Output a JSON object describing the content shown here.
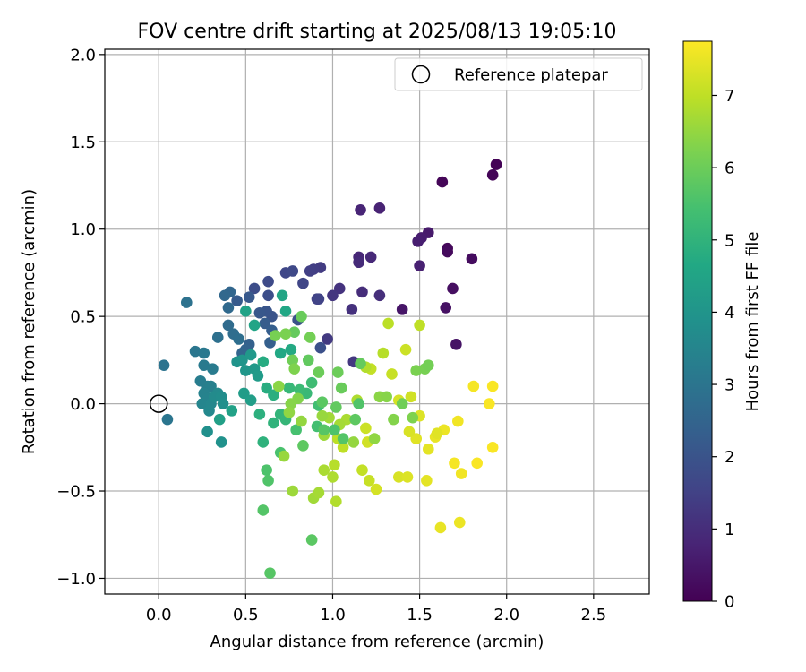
{
  "chart_data": {
    "type": "scatter",
    "title": "FOV centre drift starting at 2025/08/13 19:05:10",
    "xlabel": "Angular distance from reference (arcmin)",
    "ylabel": "Rotation from reference (arcmin)",
    "xlim": [
      -0.31,
      2.82
    ],
    "ylim": [
      -1.09,
      2.03
    ],
    "xticks": [
      0.0,
      0.5,
      1.0,
      1.5,
      2.0,
      2.5
    ],
    "xtick_labels": [
      "0.0",
      "0.5",
      "1.0",
      "1.5",
      "2.0",
      "2.5"
    ],
    "yticks": [
      -1.0,
      -0.5,
      0.0,
      0.5,
      1.0,
      1.5,
      2.0
    ],
    "ytick_labels": [
      "−1.0",
      "−0.5",
      "0.0",
      "0.5",
      "1.0",
      "1.5",
      "2.0"
    ],
    "grid": true,
    "legend": {
      "placement": "top-right",
      "entries": [
        {
          "label": "Reference platepar",
          "marker": "open-circle"
        }
      ]
    },
    "reference_point": {
      "x": 0.0,
      "y": 0.0
    },
    "colorbar": {
      "label": "Hours from first FF file",
      "min": 0,
      "max": 7.75,
      "ticks": [
        0,
        1,
        2,
        3,
        4,
        5,
        6,
        7
      ],
      "colormap": "viridis"
    },
    "points": [
      [
        1.94,
        1.37,
        0.05
      ],
      [
        1.92,
        1.31,
        0.08
      ],
      [
        1.63,
        1.27,
        0.1
      ],
      [
        1.66,
        0.89,
        0.15
      ],
      [
        1.66,
        0.87,
        0.2
      ],
      [
        1.8,
        0.83,
        0.25
      ],
      [
        1.69,
        0.66,
        0.3
      ],
      [
        1.65,
        0.55,
        0.35
      ],
      [
        1.71,
        0.34,
        0.4
      ],
      [
        1.4,
        0.54,
        0.45
      ],
      [
        1.55,
        0.98,
        0.55
      ],
      [
        1.51,
        0.95,
        0.6
      ],
      [
        1.49,
        0.93,
        0.65
      ],
      [
        1.5,
        0.79,
        0.7
      ],
      [
        1.27,
        1.12,
        0.75
      ],
      [
        1.16,
        1.11,
        0.8
      ],
      [
        1.15,
        0.84,
        0.85
      ],
      [
        1.22,
        0.84,
        0.9
      ],
      [
        1.15,
        0.81,
        0.95
      ],
      [
        1.17,
        0.64,
        1.0
      ],
      [
        1.27,
        0.62,
        1.05
      ],
      [
        1.11,
        0.54,
        1.1
      ],
      [
        1.04,
        0.66,
        1.15
      ],
      [
        1.0,
        0.62,
        1.2
      ],
      [
        1.12,
        0.24,
        1.25
      ],
      [
        0.97,
        0.37,
        1.3
      ],
      [
        0.93,
        0.78,
        1.35
      ],
      [
        0.89,
        0.77,
        1.4
      ],
      [
        0.87,
        0.76,
        1.45
      ],
      [
        0.91,
        0.6,
        1.5
      ],
      [
        0.92,
        0.6,
        1.55
      ],
      [
        0.83,
        0.69,
        1.6
      ],
      [
        0.73,
        0.75,
        1.65
      ],
      [
        0.77,
        0.76,
        1.7
      ],
      [
        0.63,
        0.7,
        1.75
      ],
      [
        0.55,
        0.66,
        1.8
      ],
      [
        0.63,
        0.62,
        1.85
      ],
      [
        0.93,
        0.32,
        1.9
      ],
      [
        0.8,
        0.48,
        1.95
      ],
      [
        0.65,
        0.5,
        2.0
      ],
      [
        0.62,
        0.53,
        2.05
      ],
      [
        0.58,
        0.52,
        2.1
      ],
      [
        0.52,
        0.61,
        2.15
      ],
      [
        0.45,
        0.59,
        2.2
      ],
      [
        0.61,
        0.46,
        2.25
      ],
      [
        0.65,
        0.42,
        2.3
      ],
      [
        0.64,
        0.35,
        2.35
      ],
      [
        0.52,
        0.34,
        2.4
      ],
      [
        0.5,
        0.31,
        2.45
      ],
      [
        0.48,
        0.29,
        2.5
      ],
      [
        0.41,
        0.64,
        2.55
      ],
      [
        0.38,
        0.62,
        2.6
      ],
      [
        0.4,
        0.55,
        2.65
      ],
      [
        0.4,
        0.45,
        2.7
      ],
      [
        0.43,
        0.4,
        2.75
      ],
      [
        0.46,
        0.37,
        2.8
      ],
      [
        0.34,
        0.38,
        2.85
      ],
      [
        0.16,
        0.58,
        2.9
      ],
      [
        0.03,
        0.22,
        2.95
      ],
      [
        0.05,
        -0.09,
        3.0
      ],
      [
        0.21,
        0.3,
        3.05
      ],
      [
        0.26,
        0.29,
        3.1
      ],
      [
        0.26,
        0.22,
        3.15
      ],
      [
        0.31,
        0.2,
        3.2
      ],
      [
        0.24,
        0.13,
        3.25
      ],
      [
        0.28,
        0.1,
        3.3
      ],
      [
        0.3,
        0.1,
        3.35
      ],
      [
        0.26,
        0.06,
        3.4
      ],
      [
        0.28,
        0.03,
        3.45
      ],
      [
        0.25,
        0.0,
        3.5
      ],
      [
        0.3,
        0.0,
        3.55
      ],
      [
        0.29,
        -0.04,
        3.6
      ],
      [
        0.34,
        0.06,
        3.65
      ],
      [
        0.32,
        0.04,
        3.7
      ],
      [
        0.36,
        0.04,
        3.75
      ],
      [
        0.37,
        0.0,
        3.8
      ],
      [
        0.28,
        -0.16,
        3.85
      ],
      [
        0.36,
        -0.22,
        3.9
      ],
      [
        0.45,
        0.24,
        3.95
      ],
      [
        0.48,
        0.25,
        4.0
      ],
      [
        0.5,
        0.19,
        4.05
      ],
      [
        0.53,
        0.28,
        4.1
      ],
      [
        0.55,
        0.2,
        4.15
      ],
      [
        0.57,
        0.16,
        4.2
      ],
      [
        0.49,
        0.06,
        4.25
      ],
      [
        0.53,
        0.02,
        4.3
      ],
      [
        0.35,
        -0.09,
        4.35
      ],
      [
        0.42,
        -0.04,
        4.4
      ],
      [
        0.5,
        0.53,
        4.45
      ],
      [
        0.55,
        0.45,
        4.5
      ],
      [
        0.71,
        0.62,
        4.55
      ],
      [
        0.73,
        0.53,
        4.6
      ],
      [
        0.7,
        0.29,
        4.65
      ],
      [
        0.76,
        0.31,
        4.7
      ],
      [
        0.6,
        0.24,
        4.75
      ],
      [
        0.62,
        0.09,
        4.8
      ],
      [
        0.66,
        0.05,
        4.85
      ],
      [
        0.58,
        -0.06,
        4.9
      ],
      [
        0.6,
        -0.22,
        4.95
      ],
      [
        0.66,
        -0.11,
        5.0
      ],
      [
        0.7,
        -0.06,
        5.05
      ],
      [
        0.73,
        -0.09,
        5.1
      ],
      [
        0.75,
        0.09,
        5.15
      ],
      [
        0.85,
        0.06,
        5.2
      ],
      [
        0.81,
        0.08,
        5.25
      ],
      [
        0.88,
        0.12,
        5.3
      ],
      [
        0.92,
        -0.01,
        5.35
      ],
      [
        0.91,
        -0.13,
        5.4
      ],
      [
        0.79,
        -0.15,
        5.45
      ],
      [
        0.7,
        -0.28,
        5.5
      ],
      [
        0.62,
        -0.38,
        5.55
      ],
      [
        0.63,
        -0.44,
        5.6
      ],
      [
        0.6,
        -0.61,
        5.65
      ],
      [
        0.64,
        -0.97,
        5.7
      ],
      [
        0.88,
        -0.78,
        5.75
      ],
      [
        0.83,
        -0.24,
        5.8
      ],
      [
        0.86,
        0.25,
        5.85
      ],
      [
        0.78,
        0.41,
        5.9
      ],
      [
        0.82,
        0.5,
        5.95
      ],
      [
        0.92,
        0.18,
        6.0
      ],
      [
        0.77,
        0.25,
        6.05
      ],
      [
        0.87,
        0.38,
        6.1
      ],
      [
        0.67,
        0.39,
        6.15
      ],
      [
        0.73,
        0.4,
        6.2
      ],
      [
        0.78,
        0.2,
        6.25
      ],
      [
        0.8,
        0.03,
        6.3
      ],
      [
        0.76,
        0.0,
        6.35
      ],
      [
        0.69,
        0.1,
        6.4
      ],
      [
        0.75,
        -0.05,
        6.45
      ],
      [
        0.82,
        -0.1,
        6.5
      ],
      [
        0.72,
        -0.3,
        6.55
      ],
      [
        0.77,
        -0.5,
        6.6
      ],
      [
        0.89,
        -0.54,
        6.65
      ],
      [
        0.92,
        -0.51,
        6.7
      ],
      [
        0.95,
        -0.38,
        6.75
      ],
      [
        1.0,
        -0.42,
        6.8
      ],
      [
        1.02,
        -0.56,
        6.85
      ],
      [
        1.01,
        -0.35,
        6.9
      ],
      [
        1.03,
        -0.2,
        6.95
      ],
      [
        1.06,
        -0.25,
        7.0
      ],
      [
        1.17,
        -0.38,
        7.05
      ],
      [
        1.21,
        -0.44,
        7.1
      ],
      [
        1.19,
        -0.14,
        7.15
      ],
      [
        1.2,
        -0.22,
        7.2
      ],
      [
        1.25,
        -0.49,
        7.25
      ],
      [
        1.38,
        -0.42,
        7.3
      ],
      [
        1.43,
        -0.42,
        7.35
      ],
      [
        1.48,
        -0.2,
        7.4
      ],
      [
        1.54,
        -0.44,
        7.45
      ],
      [
        1.62,
        -0.71,
        7.5
      ],
      [
        1.73,
        -0.68,
        7.55
      ],
      [
        1.74,
        -0.4,
        7.6
      ],
      [
        1.7,
        -0.34,
        7.65
      ],
      [
        1.83,
        -0.34,
        7.7
      ],
      [
        1.92,
        -0.25,
        7.7
      ],
      [
        1.9,
        0.0,
        7.7
      ],
      [
        1.92,
        0.1,
        7.7
      ],
      [
        1.81,
        0.1,
        7.65
      ],
      [
        1.72,
        -0.1,
        7.6
      ],
      [
        1.64,
        -0.15,
        7.55
      ],
      [
        1.59,
        -0.19,
        7.5
      ],
      [
        1.55,
        -0.26,
        7.45
      ],
      [
        1.6,
        -0.17,
        7.4
      ],
      [
        1.5,
        -0.07,
        7.35
      ],
      [
        1.44,
        -0.16,
        7.3
      ],
      [
        1.38,
        0.02,
        7.25
      ],
      [
        1.45,
        0.04,
        7.2
      ],
      [
        1.42,
        0.31,
        7.15
      ],
      [
        1.34,
        0.17,
        7.1
      ],
      [
        1.22,
        0.2,
        7.05
      ],
      [
        1.5,
        0.45,
        7.0
      ],
      [
        1.32,
        0.46,
        6.95
      ],
      [
        1.29,
        0.29,
        6.9
      ],
      [
        1.19,
        0.21,
        6.85
      ],
      [
        1.14,
        0.02,
        6.8
      ],
      [
        1.08,
        -0.09,
        6.75
      ],
      [
        1.04,
        -0.12,
        6.7
      ],
      [
        0.98,
        -0.08,
        6.65
      ],
      [
        0.95,
        -0.18,
        6.6
      ],
      [
        0.94,
        -0.07,
        6.55
      ],
      [
        1.12,
        -0.22,
        6.5
      ],
      [
        1.24,
        -0.2,
        6.45
      ],
      [
        1.27,
        0.04,
        6.4
      ],
      [
        1.31,
        0.04,
        6.35
      ],
      [
        1.35,
        -0.09,
        6.3
      ],
      [
        1.46,
        -0.08,
        6.25
      ],
      [
        1.48,
        0.19,
        6.2
      ],
      [
        1.53,
        0.2,
        6.15
      ],
      [
        1.55,
        0.22,
        6.1
      ],
      [
        1.4,
        0.0,
        6.05
      ],
      [
        1.03,
        0.18,
        6.0
      ],
      [
        1.05,
        0.09,
        5.95
      ],
      [
        1.16,
        0.23,
        5.9
      ],
      [
        1.02,
        -0.02,
        5.85
      ],
      [
        1.13,
        -0.09,
        5.8
      ],
      [
        0.94,
        0.01,
        5.75
      ],
      [
        0.95,
        -0.15,
        5.7
      ],
      [
        1.06,
        -0.2,
        5.65
      ],
      [
        1.15,
        0.0,
        5.6
      ],
      [
        1.01,
        -0.15,
        5.55
      ]
    ]
  }
}
